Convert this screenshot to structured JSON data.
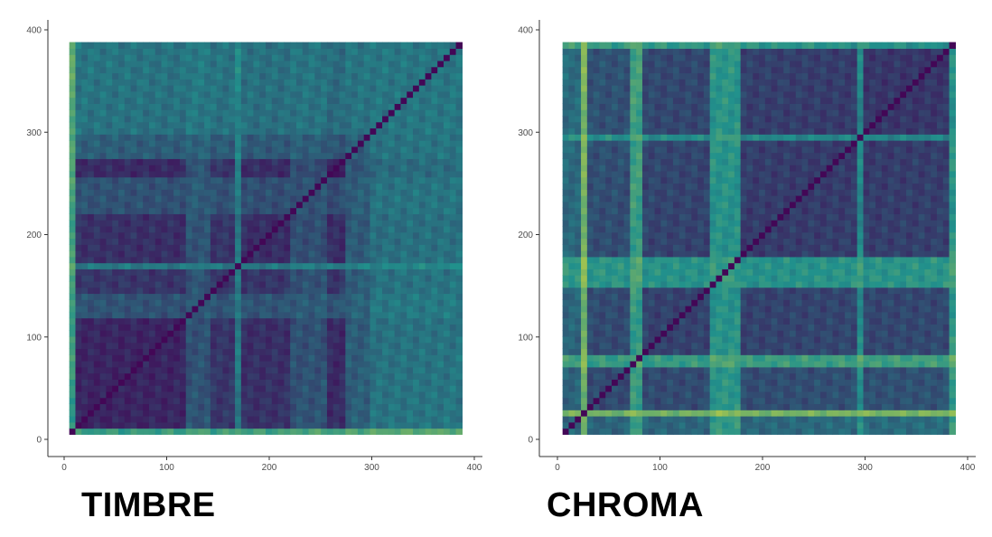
{
  "chart_data": [
    {
      "type": "heatmap",
      "title": "",
      "caption": "TIMBRE",
      "xlabel": "",
      "ylabel": "",
      "xlim": [
        0,
        400
      ],
      "ylim": [
        0,
        400
      ],
      "data_extent": [
        5,
        388
      ],
      "xticks": [
        0,
        100,
        200,
        300,
        400
      ],
      "yticks": [
        0,
        100,
        200,
        300,
        400
      ],
      "grid": false,
      "colormap": "viridis",
      "colors": {
        "low": "#440154",
        "mid": "#21918c",
        "high": "#fde725"
      },
      "bands": [
        {
          "from": 5,
          "to": 8,
          "level": 0.62
        },
        {
          "from": 8,
          "to": 120,
          "level": 0.12
        },
        {
          "from": 120,
          "to": 140,
          "level": 0.3
        },
        {
          "from": 140,
          "to": 165,
          "level": 0.18
        },
        {
          "from": 165,
          "to": 175,
          "level": 0.45
        },
        {
          "from": 175,
          "to": 220,
          "level": 0.15
        },
        {
          "from": 220,
          "to": 255,
          "level": 0.28
        },
        {
          "from": 255,
          "to": 258,
          "level": 0.92
        },
        {
          "from": 258,
          "to": 275,
          "level": 0.1
        },
        {
          "from": 275,
          "to": 300,
          "level": 0.32
        },
        {
          "from": 300,
          "to": 388,
          "level": 0.4
        }
      ]
    },
    {
      "type": "heatmap",
      "title": "",
      "caption": "CHROMA",
      "xlabel": "",
      "ylabel": "",
      "xlim": [
        0,
        400
      ],
      "ylim": [
        0,
        400
      ],
      "data_extent": [
        5,
        388
      ],
      "xticks": [
        0,
        100,
        200,
        300,
        400
      ],
      "yticks": [
        0,
        100,
        200,
        300,
        400
      ],
      "grid": false,
      "colormap": "viridis",
      "colors": {
        "low": "#440154",
        "mid": "#21918c",
        "high": "#fde725"
      },
      "bands": [
        {
          "from": 5,
          "to": 25,
          "level": 0.35
        },
        {
          "from": 25,
          "to": 30,
          "level": 0.75
        },
        {
          "from": 30,
          "to": 70,
          "level": 0.25
        },
        {
          "from": 70,
          "to": 80,
          "level": 0.6
        },
        {
          "from": 80,
          "to": 150,
          "level": 0.22
        },
        {
          "from": 150,
          "to": 180,
          "level": 0.55
        },
        {
          "from": 180,
          "to": 290,
          "level": 0.2
        },
        {
          "from": 290,
          "to": 300,
          "level": 0.5
        },
        {
          "from": 300,
          "to": 380,
          "level": 0.18
        },
        {
          "from": 380,
          "to": 388,
          "level": 0.55
        }
      ]
    }
  ]
}
